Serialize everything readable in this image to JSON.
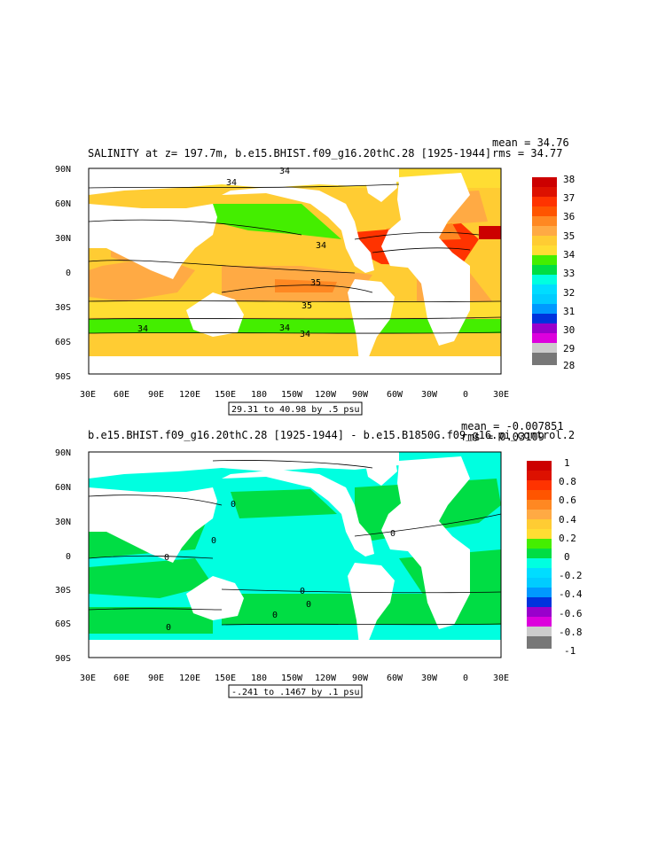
{
  "panel1": {
    "title": "SALINITY at z= 197.7m, b.e15.BHIST.f09_g16.20thC.28 [1925-1944]",
    "mean": "mean = 34.76",
    "rms": "rms = 34.77",
    "range_label": "29.31 to 40.98 by .5 psu",
    "colorbar": [
      "38",
      "37",
      "36",
      "35",
      "34",
      "33",
      "32",
      "31",
      "30",
      "29",
      "28"
    ],
    "contour_labels": [
      "34",
      "34",
      "34",
      "35",
      "35",
      "34",
      "34",
      "34"
    ]
  },
  "panel2": {
    "title": "b.e15.BHIST.f09_g16.20thC.28 [1925-1944] - b.e15.B1850G.f09_g16.pi_control.2",
    "mean": "mean = -0.007851",
    "rms": "rms = 0.03109",
    "range_label": "-.241 to .1467 by .1 psu",
    "colorbar": [
      "1",
      "0.8",
      "0.6",
      "0.4",
      "0.2",
      "0",
      "-0.2",
      "-0.4",
      "-0.6",
      "-0.8",
      "-1"
    ],
    "contour_labels": [
      "0",
      "0",
      "0",
      "0",
      "0",
      "0",
      "0",
      "0"
    ]
  },
  "axes": {
    "lat_labels": [
      "90N",
      "60N",
      "30N",
      "0",
      "30S",
      "60S",
      "90S"
    ],
    "lon_labels": [
      "30E",
      "60E",
      "90E",
      "120E",
      "150E",
      "180",
      "150W",
      "120W",
      "90W",
      "60W",
      "30W",
      "0",
      "30E"
    ]
  },
  "colors": {
    "sal": [
      "#777777",
      "#cccccc",
      "#dd00dd",
      "#9900cc",
      "#0033dd",
      "#0099ff",
      "#00ccff",
      "#00ffe0",
      "#00dd44",
      "#44ee00",
      "#ffdd33",
      "#ffcc33",
      "#ffaa44",
      "#ff8822",
      "#ff3300",
      "#cc0000"
    ],
    "land": "#ffffff"
  }
}
